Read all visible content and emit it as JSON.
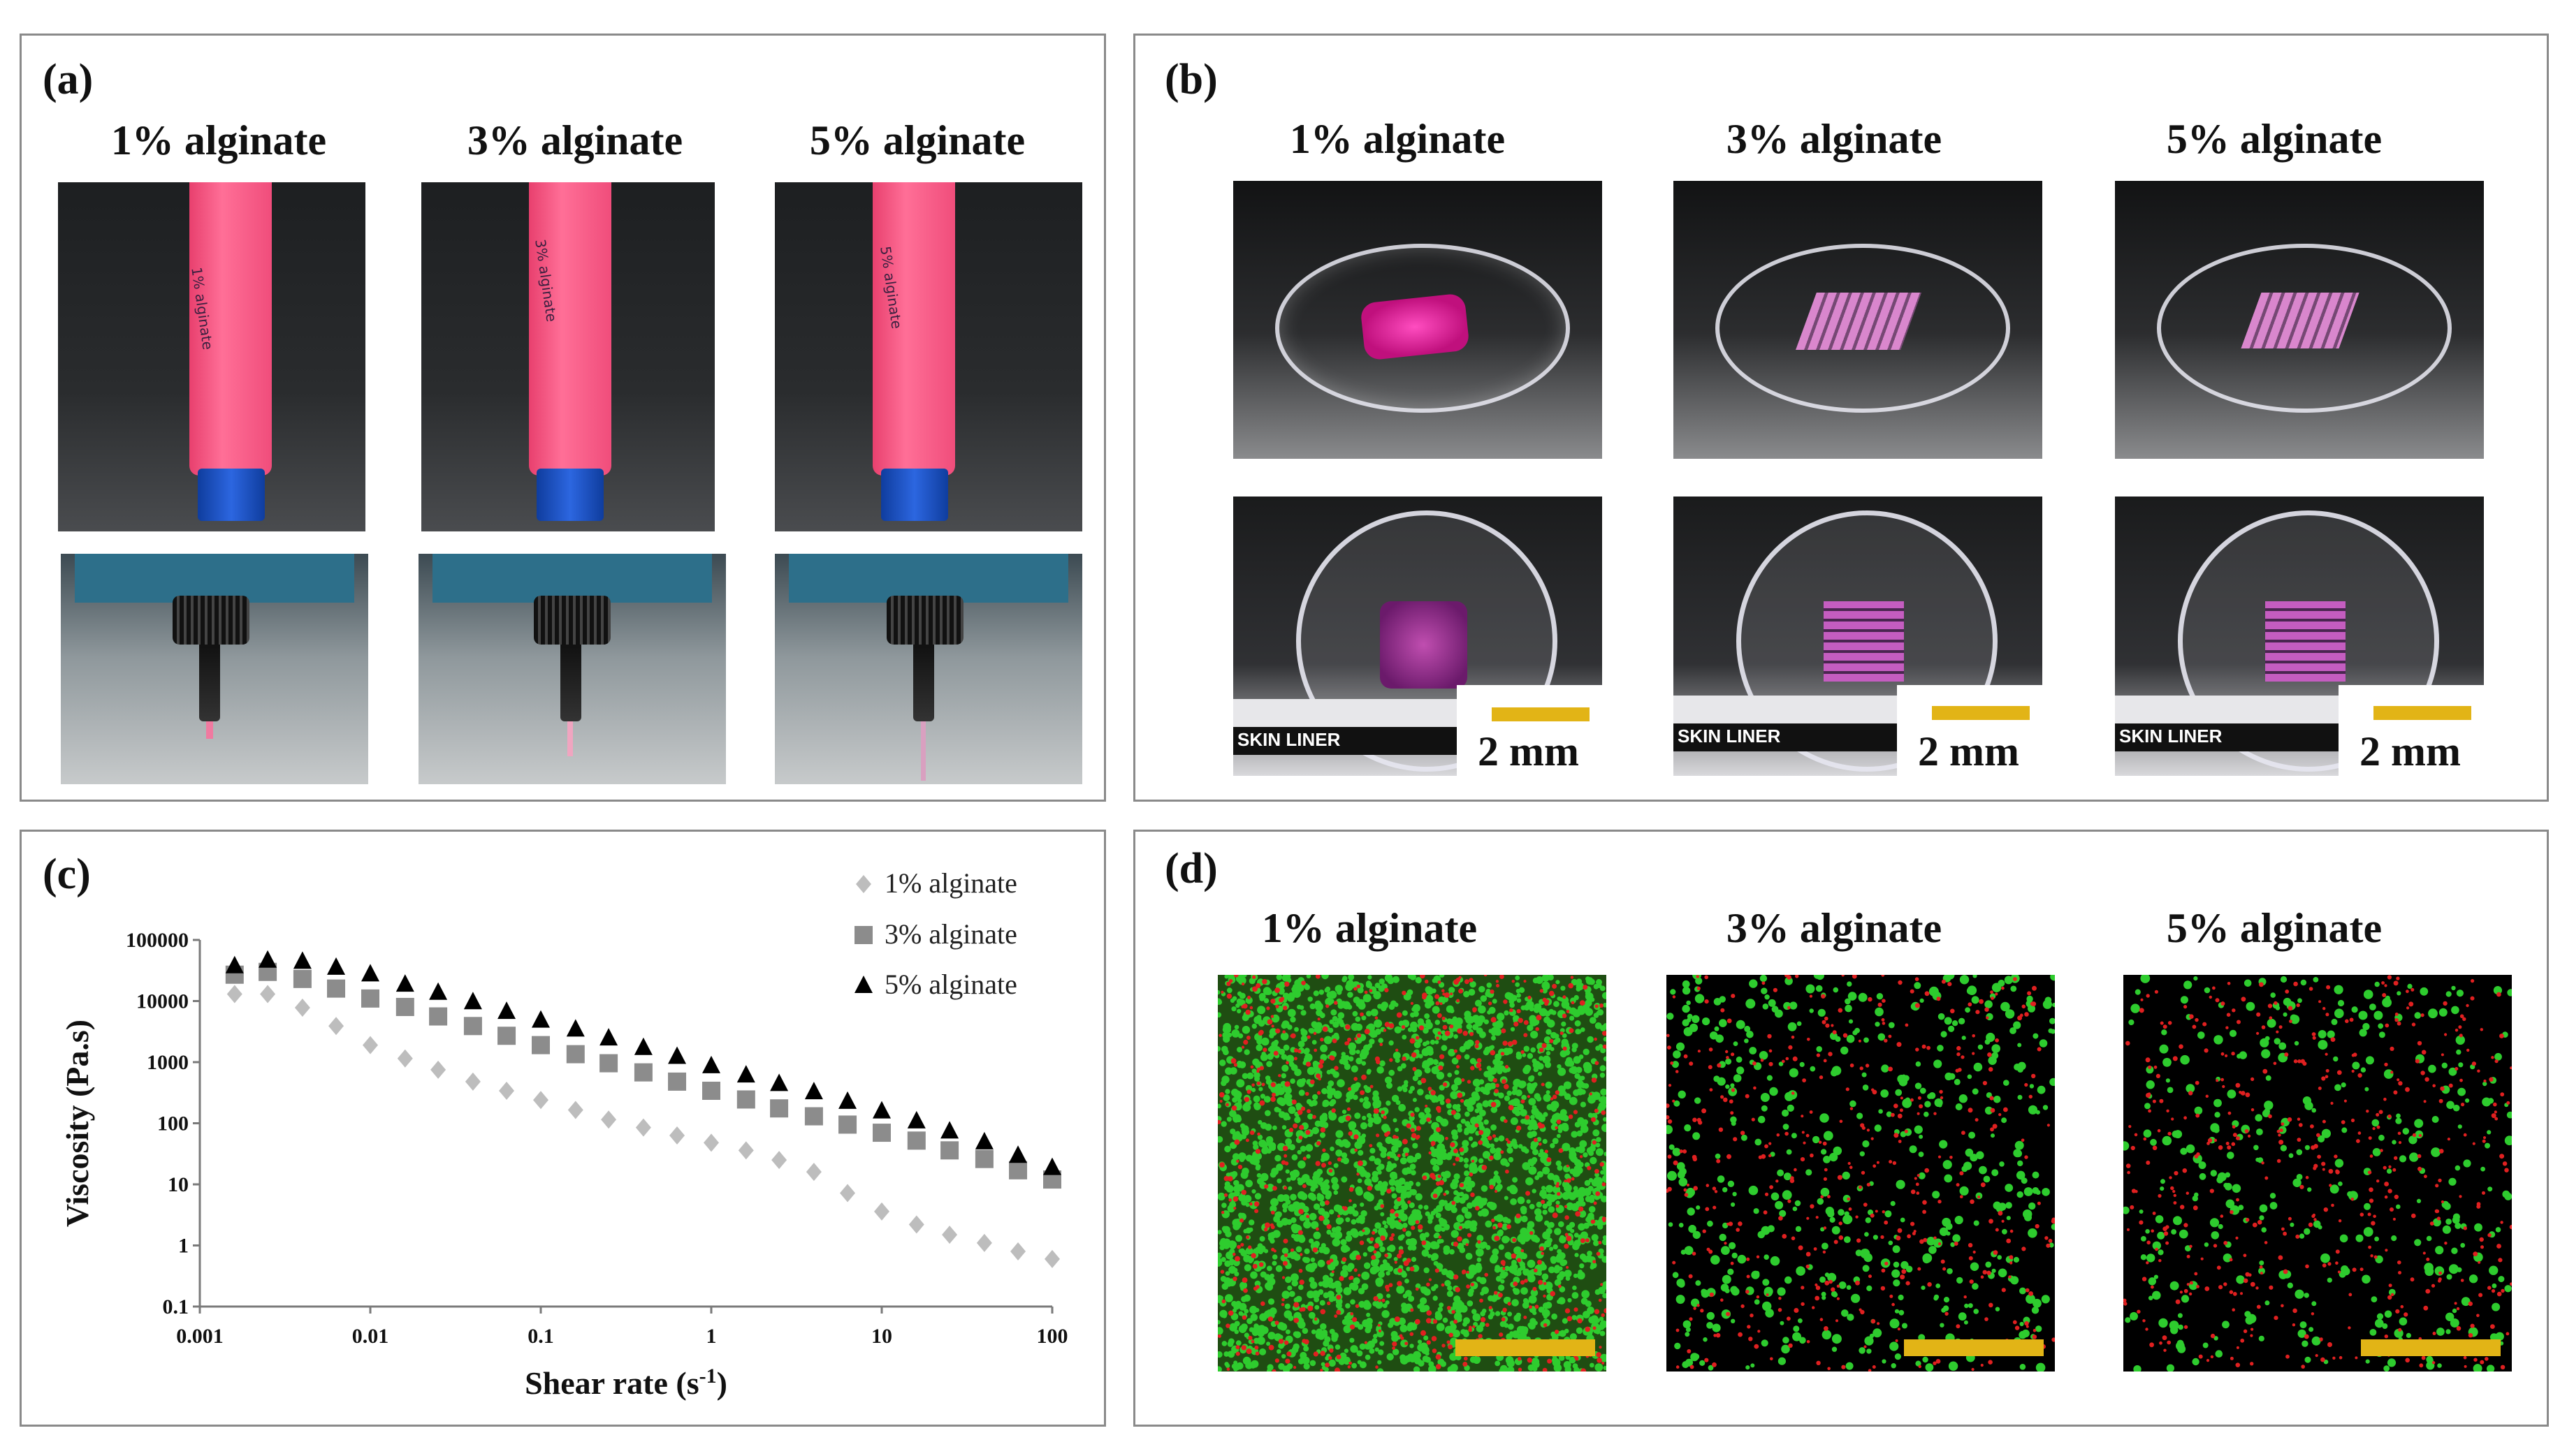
{
  "panels": {
    "a": {
      "label": "(a)",
      "titles": [
        "1% alginate",
        "3% alginate",
        "5% alginate"
      ],
      "tube_labels": [
        "1% alginate",
        "3% alginate",
        "5% alginate"
      ]
    },
    "b": {
      "label": "(b)",
      "titles": [
        "1% alginate",
        "3% alginate",
        "5% alginate"
      ],
      "ruler_text": "SKIN LINER",
      "scale_text": "2 mm"
    },
    "c": {
      "label": "(c)"
    },
    "d": {
      "label": "(d)",
      "titles": [
        "1% alginate",
        "3% alginate",
        "5% alginate"
      ]
    }
  },
  "colors": {
    "scale_bar": "#e2b416",
    "pink_gel": "#f25a86",
    "blue_cap": "#1a53c9",
    "live_cells": "#2ecc2e",
    "dead_cells": "#e02020",
    "series_1pct": "#bdbdbd",
    "series_3pct": "#8c8c8c",
    "series_5pct": "#000000"
  },
  "chart_data": {
    "type": "scatter",
    "xlabel": "Shear rate (s-1)",
    "ylabel": "Viscosity (Pa.s)",
    "x_scale": "log",
    "y_scale": "log",
    "xlim": [
      0.001,
      100
    ],
    "ylim": [
      0.1,
      100000
    ],
    "x_ticks": [
      "0.001",
      "0.01",
      "0.1",
      "1",
      "10",
      "100"
    ],
    "y_ticks": [
      "100000",
      "10000",
      "1000",
      "100",
      "10",
      "1",
      "0.1"
    ],
    "grid": false,
    "legend": "top-right",
    "series": [
      {
        "name": "1% alginate",
        "marker": "diamond",
        "points": [
          [
            0.0016,
            13000
          ],
          [
            0.0025,
            13000
          ],
          [
            0.004,
            7800
          ],
          [
            0.0063,
            3900
          ],
          [
            0.01,
            1900
          ],
          [
            0.016,
            1150
          ],
          [
            0.025,
            750
          ],
          [
            0.04,
            480
          ],
          [
            0.063,
            340
          ],
          [
            0.1,
            240
          ],
          [
            0.16,
            165
          ],
          [
            0.25,
            115
          ],
          [
            0.4,
            85
          ],
          [
            0.63,
            63
          ],
          [
            1,
            48
          ],
          [
            1.6,
            36
          ],
          [
            2.5,
            25
          ],
          [
            4,
            16
          ],
          [
            6.3,
            7.2
          ],
          [
            10,
            3.6
          ],
          [
            16,
            2.2
          ],
          [
            25,
            1.5
          ],
          [
            40,
            1.1
          ],
          [
            63,
            0.8
          ],
          [
            100,
            0.6
          ]
        ]
      },
      {
        "name": "3% alginate",
        "marker": "square",
        "points": [
          [
            0.0016,
            27000
          ],
          [
            0.0025,
            30000
          ],
          [
            0.004,
            23000
          ],
          [
            0.0063,
            16000
          ],
          [
            0.01,
            11000
          ],
          [
            0.016,
            8000
          ],
          [
            0.025,
            5600
          ],
          [
            0.04,
            3900
          ],
          [
            0.063,
            2700
          ],
          [
            0.1,
            1900
          ],
          [
            0.16,
            1350
          ],
          [
            0.25,
            960
          ],
          [
            0.4,
            680
          ],
          [
            0.63,
            480
          ],
          [
            1,
            340
          ],
          [
            1.6,
            245
          ],
          [
            2.5,
            175
          ],
          [
            4,
            130
          ],
          [
            6.3,
            95
          ],
          [
            10,
            70
          ],
          [
            16,
            52
          ],
          [
            25,
            36
          ],
          [
            40,
            26
          ],
          [
            63,
            17
          ],
          [
            100,
            12
          ]
        ]
      },
      {
        "name": "5% alginate",
        "marker": "triangle",
        "points": [
          [
            0.0016,
            38000
          ],
          [
            0.0025,
            47000
          ],
          [
            0.004,
            45000
          ],
          [
            0.0063,
            36000
          ],
          [
            0.01,
            28000
          ],
          [
            0.016,
            19000
          ],
          [
            0.025,
            14000
          ],
          [
            0.04,
            9800
          ],
          [
            0.063,
            6800
          ],
          [
            0.1,
            4900
          ],
          [
            0.16,
            3500
          ],
          [
            0.25,
            2500
          ],
          [
            0.4,
            1750
          ],
          [
            0.63,
            1250
          ],
          [
            1,
            880
          ],
          [
            1.6,
            620
          ],
          [
            2.5,
            450
          ],
          [
            4,
            330
          ],
          [
            6.3,
            230
          ],
          [
            10,
            160
          ],
          [
            16,
            110
          ],
          [
            25,
            75
          ],
          [
            40,
            50
          ],
          [
            63,
            30
          ],
          [
            100,
            19
          ]
        ]
      }
    ]
  }
}
